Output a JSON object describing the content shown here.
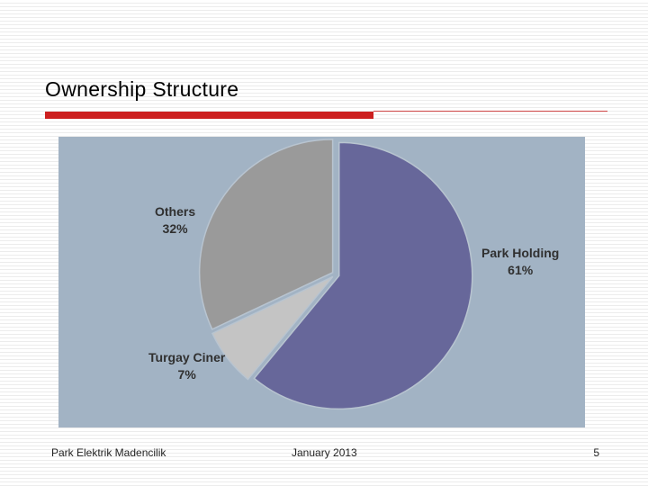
{
  "slide": {
    "title": "Ownership Structure",
    "footer_left": "Park Elektrik Madencilik",
    "footer_center": "January 2013",
    "page_number": "5"
  },
  "colors": {
    "accent_red": "#cc1f1f",
    "panel_background": "#a2b3c4"
  },
  "chart_data": {
    "type": "pie",
    "title": "",
    "slices": [
      {
        "name": "Park Holding",
        "value": 61,
        "display": "61%",
        "color": "#67679a"
      },
      {
        "name": "Turgay Ciner",
        "value": 7,
        "display": "7%",
        "color": "#c4c4c4"
      },
      {
        "name": "Others",
        "value": 32,
        "display": "32%",
        "color": "#9a9a9a"
      }
    ]
  }
}
